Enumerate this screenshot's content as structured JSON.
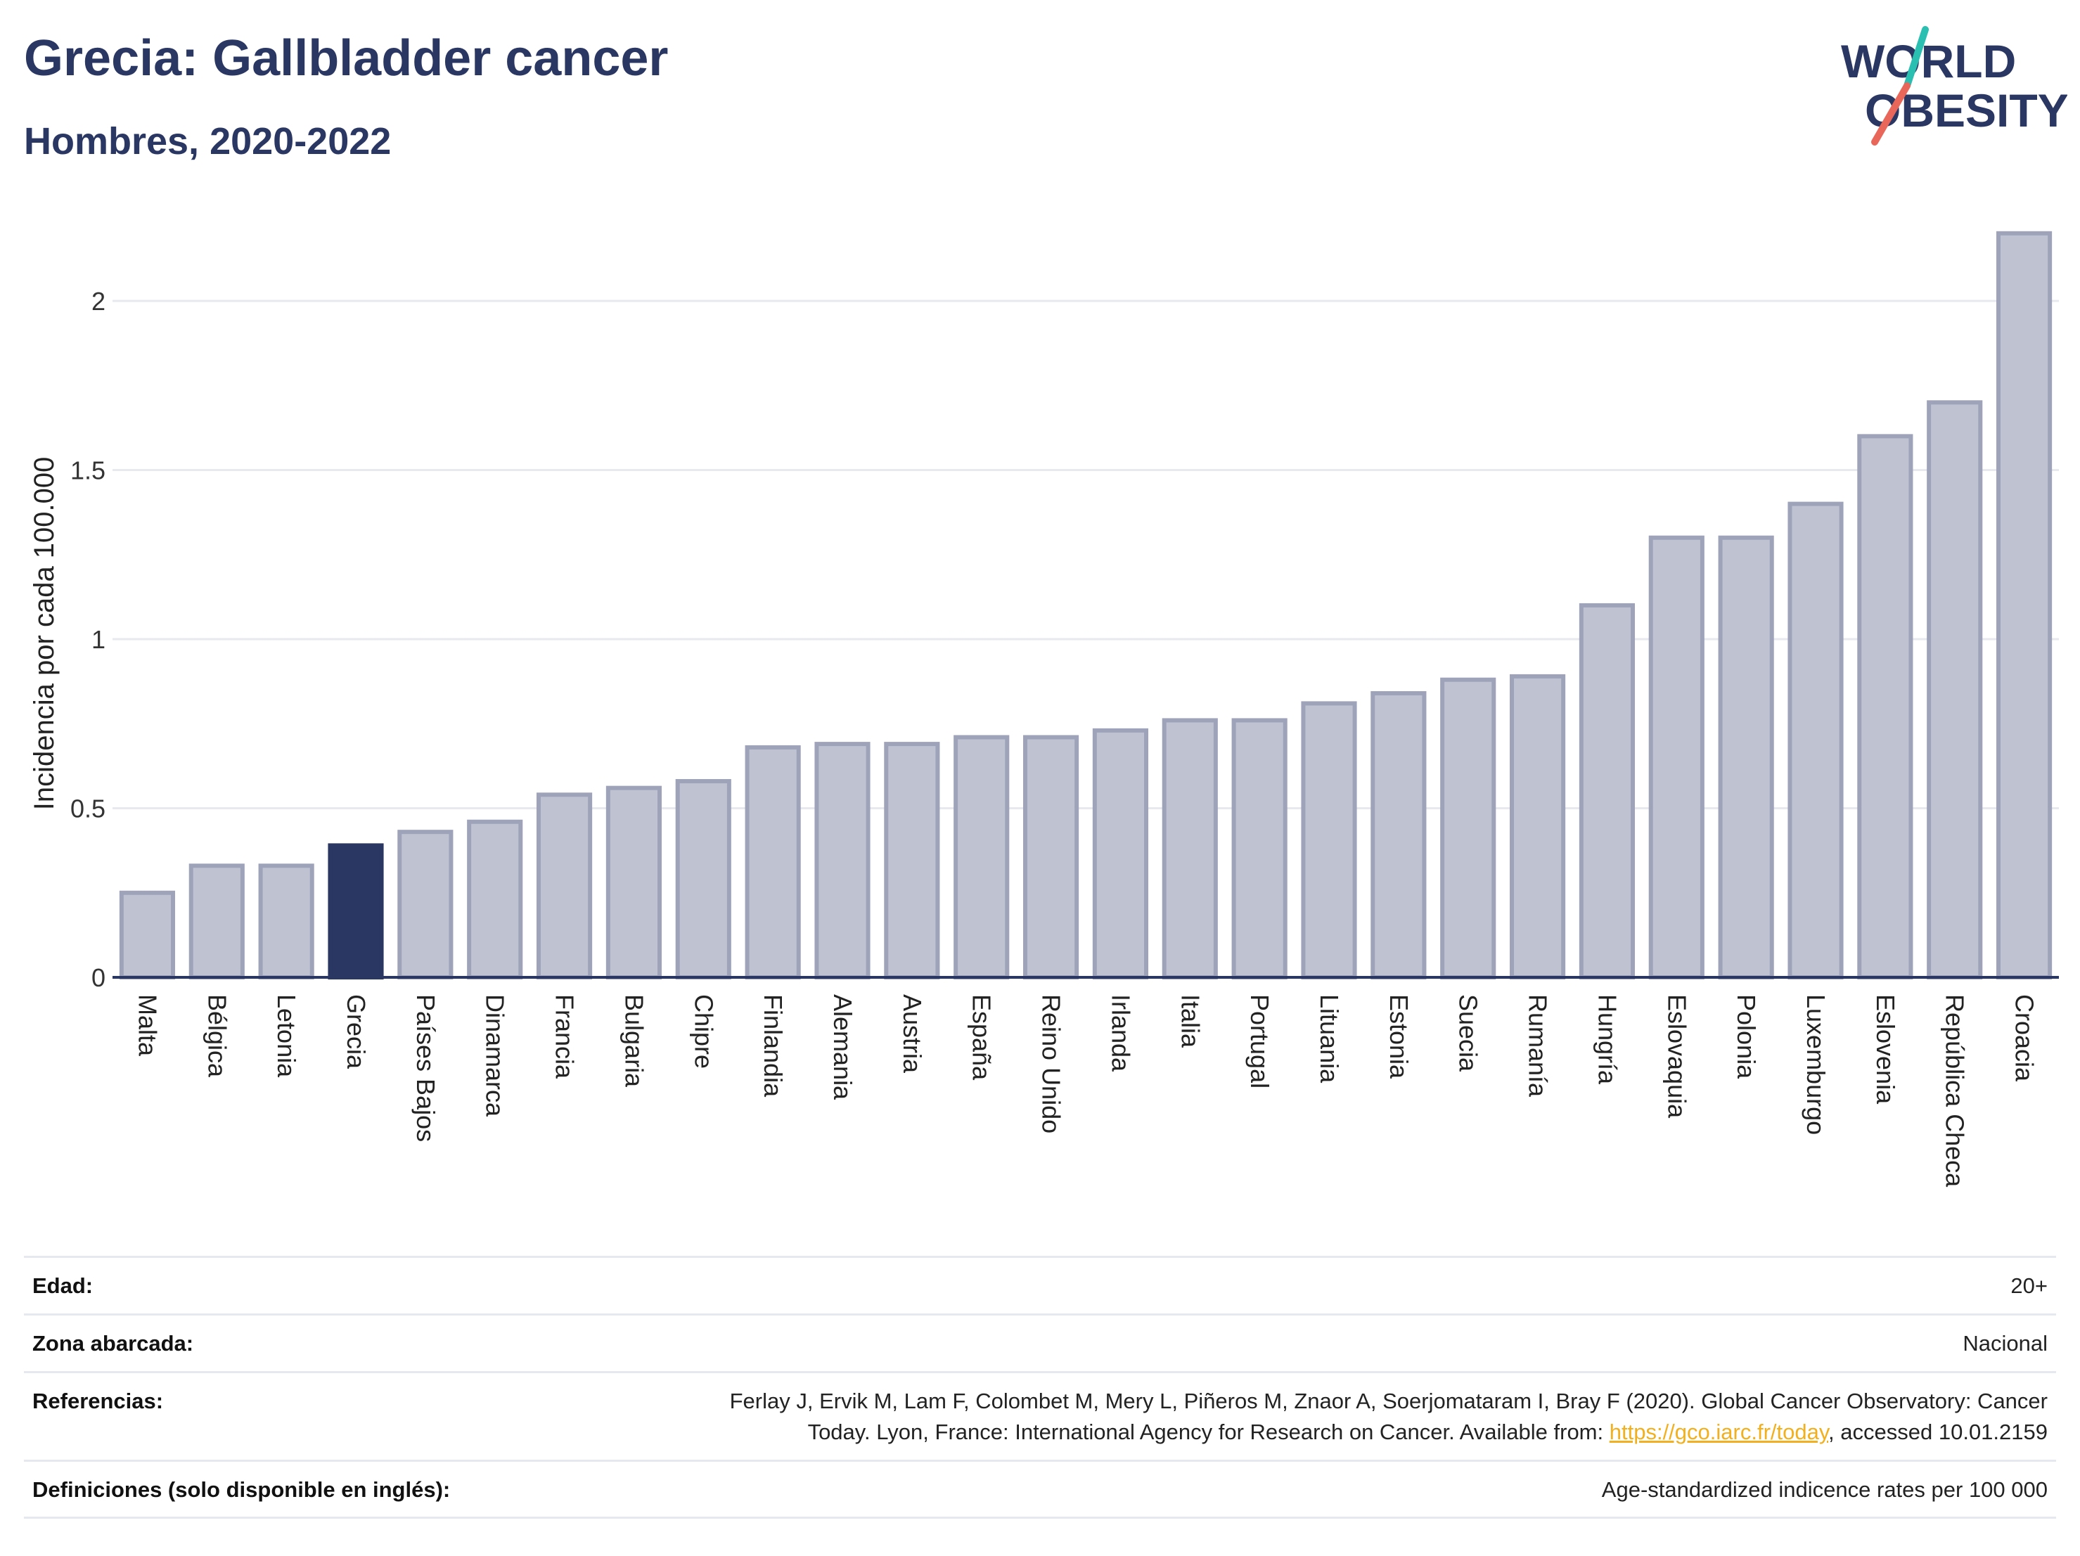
{
  "title": "Grecia: Gallbladder cancer",
  "subtitle": "Hombres, 2020-2022",
  "logo": {
    "line1": "WORLD",
    "line2": "OBESITY",
    "accent_teal": "#2bbfb1",
    "accent_red": "#e8675a"
  },
  "colors": {
    "bar": "#bfc3d1",
    "bar_border": "#9ea3ba",
    "highlight": "#2b3763",
    "grid": "#e7e9ee",
    "axis": "#2b3763"
  },
  "chart_data": {
    "type": "bar",
    "ylabel": "Incidencia por cada 100.000",
    "ylim": [
      0,
      2.2
    ],
    "yticks": [
      0,
      0.5,
      1,
      1.5,
      2
    ],
    "ytick_labels": [
      "0",
      "0.5",
      "1",
      "1.5",
      "2"
    ],
    "grid": true,
    "highlight": "Grecia",
    "categories": [
      "Malta",
      "Bélgica",
      "Letonia",
      "Grecia",
      "Países Bajos",
      "Dinamarca",
      "Francia",
      "Bulgaria",
      "Chipre",
      "Finlandia",
      "Alemania",
      "Austria",
      "España",
      "Reino Unido",
      "Irlanda",
      "Italia",
      "Portugal",
      "Lituania",
      "Estonia",
      "Suecia",
      "Rumanía",
      "Hungría",
      "Eslovaquia",
      "Polonia",
      "Luxemburgo",
      "Eslovenia",
      "República Checa",
      "Croacia"
    ],
    "values": [
      0.25,
      0.33,
      0.33,
      0.39,
      0.43,
      0.46,
      0.54,
      0.56,
      0.58,
      0.68,
      0.69,
      0.69,
      0.71,
      0.71,
      0.73,
      0.76,
      0.76,
      0.81,
      0.84,
      0.88,
      0.89,
      1.1,
      1.3,
      1.3,
      1.4,
      1.6,
      1.7,
      2.2
    ]
  },
  "meta": {
    "edad_label": "Edad:",
    "edad_value": "20+",
    "zona_label": "Zona abarcada:",
    "zona_value": "Nacional",
    "ref_label": "Referencias:",
    "ref_line1": "Ferlay J, Ervik M, Lam F, Colombet M, Mery L, Piñeros M, Znaor A, Soerjomataram I, Bray F (2020). Global Cancer Observatory: Cancer",
    "ref_line2_pre": "Today. Lyon, France: International Agency for Research on Cancer. Available from: ",
    "ref_link": "https://gco.iarc.fr/today",
    "ref_line2_post": ", accessed 10.01.2159",
    "def_label": "Definiciones (solo disponible en inglés):",
    "def_value": "Age-standardized indicence rates per 100 000"
  }
}
